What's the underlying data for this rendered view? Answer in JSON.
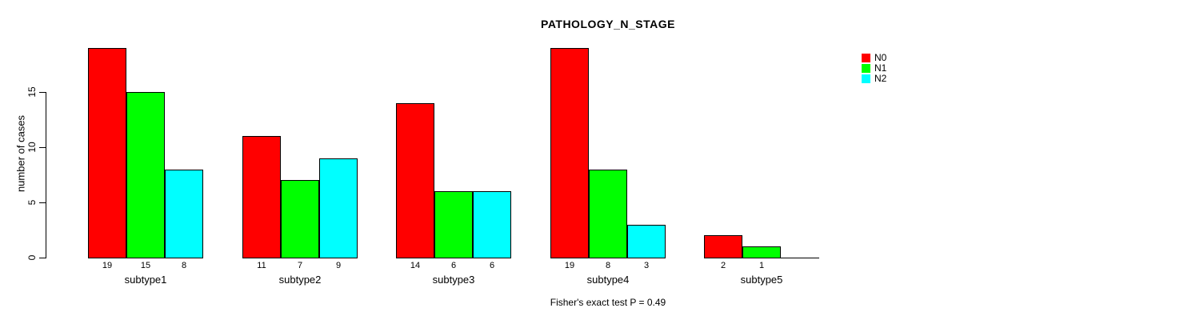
{
  "title": "PATHOLOGY_N_STAGE",
  "y_axis": {
    "label": "number of cases"
  },
  "footer": "Fisher's exact test P = 0.49",
  "legend": {
    "items": [
      {
        "label": "N0",
        "color": "#FF0000"
      },
      {
        "label": "N1",
        "color": "#00FF00"
      },
      {
        "label": "N2",
        "color": "#00FFFF"
      }
    ]
  },
  "chart_data": {
    "type": "bar",
    "grouped": true,
    "title": "PATHOLOGY_N_STAGE",
    "xlabel": "",
    "ylabel": "number of cases",
    "categories": [
      "subtype1",
      "subtype2",
      "subtype3",
      "subtype4",
      "subtype5"
    ],
    "series": [
      {
        "name": "N0",
        "color": "#FF0000",
        "values": [
          19,
          11,
          14,
          19,
          2
        ]
      },
      {
        "name": "N1",
        "color": "#00FF00",
        "values": [
          15,
          7,
          6,
          8,
          1
        ]
      },
      {
        "name": "N2",
        "color": "#00FFFF",
        "values": [
          8,
          9,
          6,
          3,
          0
        ]
      }
    ],
    "yticks": [
      0,
      5,
      10,
      15
    ],
    "ylim": [
      0,
      15
    ],
    "grid": false,
    "bar_value_labels": true,
    "zero_value_labels_hidden": true,
    "legend_position": "top-right-outside",
    "annotation": "Fisher's exact test P = 0.49"
  }
}
